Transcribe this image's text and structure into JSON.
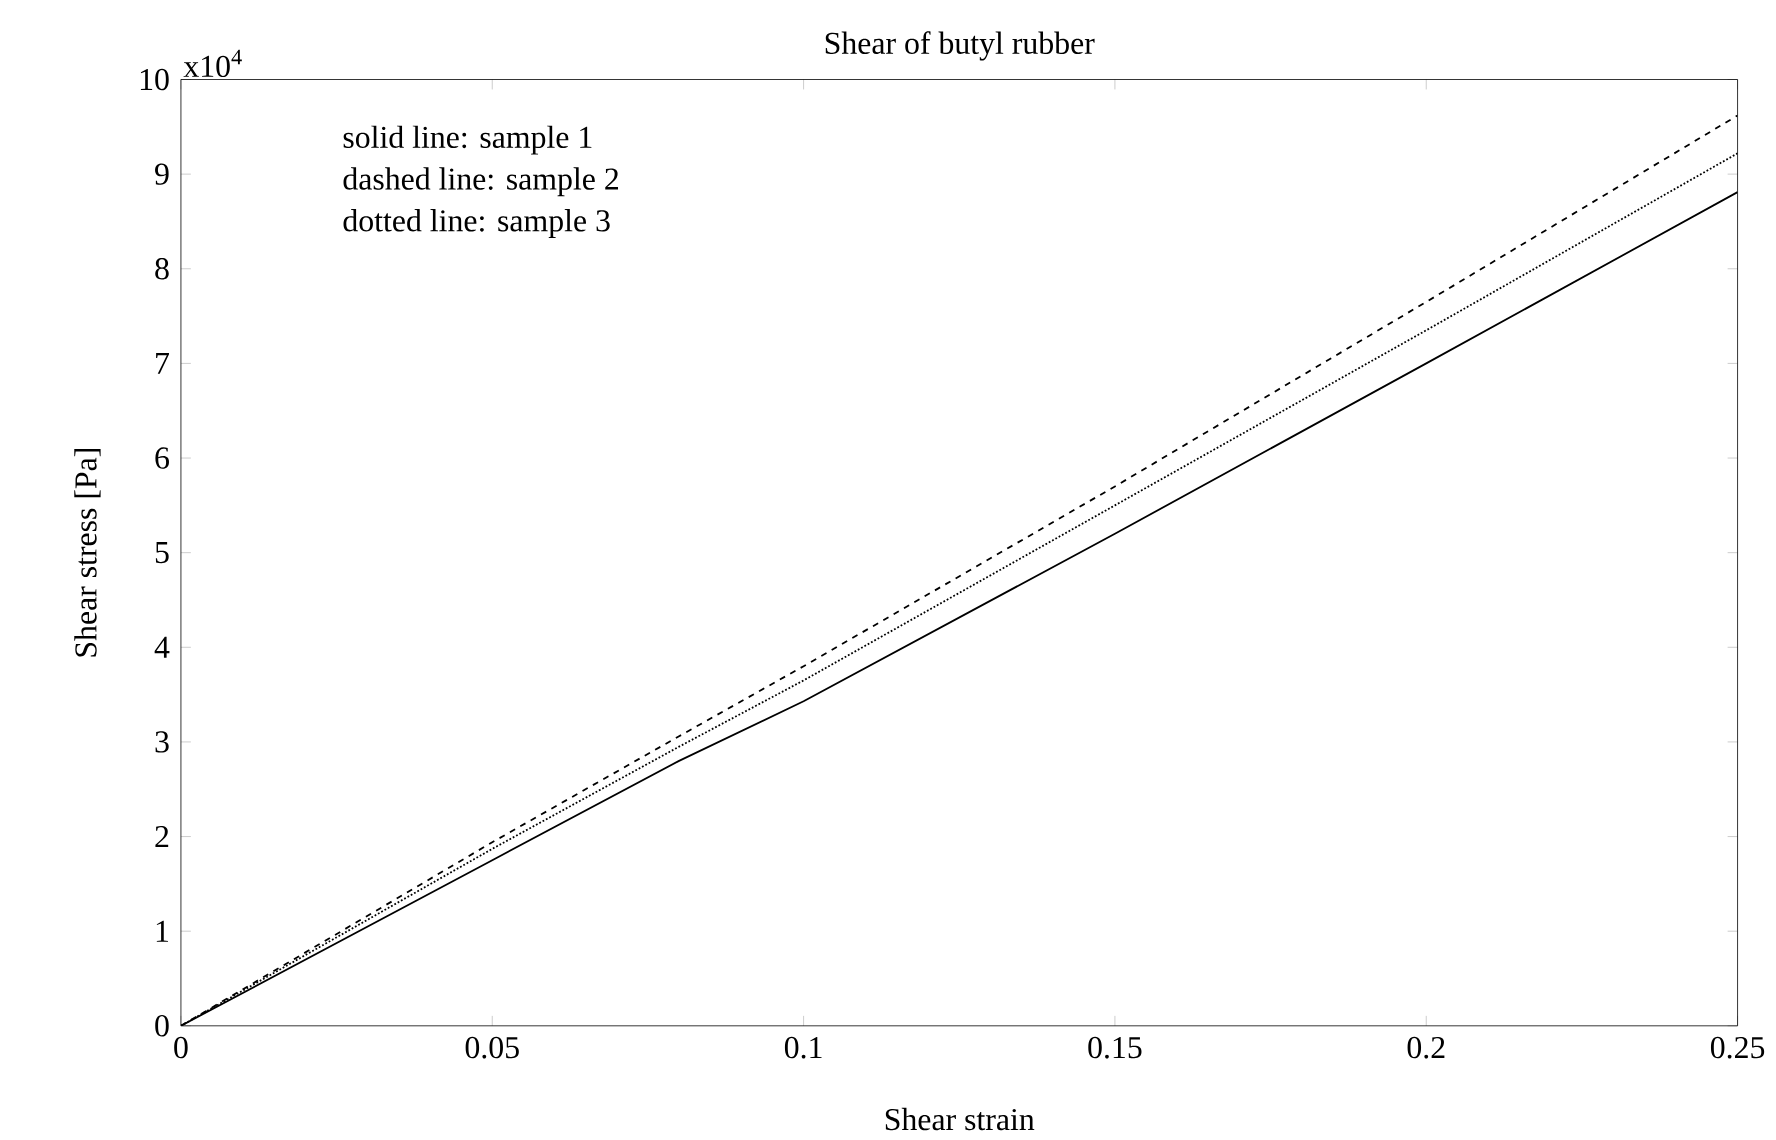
{
  "chart_data": {
    "type": "line",
    "title": "Shear of butyl rubber",
    "xlabel": "Shear strain",
    "ylabel": "Shear stress [Pa]",
    "x": [
      0,
      0.05,
      0.08,
      0.1,
      0.15,
      0.2,
      0.25
    ],
    "series": [
      {
        "color": "#000000",
        "line_style": "solid",
        "values": [
          0,
          1.75,
          2.8,
          3.43,
          5.2,
          7.0,
          8.81
        ]
      },
      {
        "color": "#000000",
        "line_style": "dashed",
        "values": [
          0,
          1.94,
          3.06,
          3.8,
          5.7,
          7.65,
          9.62
        ]
      },
      {
        "color": "#000000",
        "line_style": "dotted",
        "values": [
          0,
          1.87,
          2.95,
          3.65,
          5.5,
          7.35,
          9.22
        ]
      }
    ],
    "xlim": [
      0,
      0.25
    ],
    "ylim": [
      0,
      10
    ],
    "xticks": [
      0,
      0.05,
      0.1,
      0.15,
      0.2,
      0.25
    ],
    "yticks": [
      0,
      1,
      2,
      3,
      4,
      5,
      6,
      7,
      8,
      9,
      10
    ],
    "grid": false,
    "annotations": [
      "x10$^{4}$",
      "solid line: sample 1",
      "dashed line: sample 2",
      "dotted line: sample 3"
    ]
  }
}
